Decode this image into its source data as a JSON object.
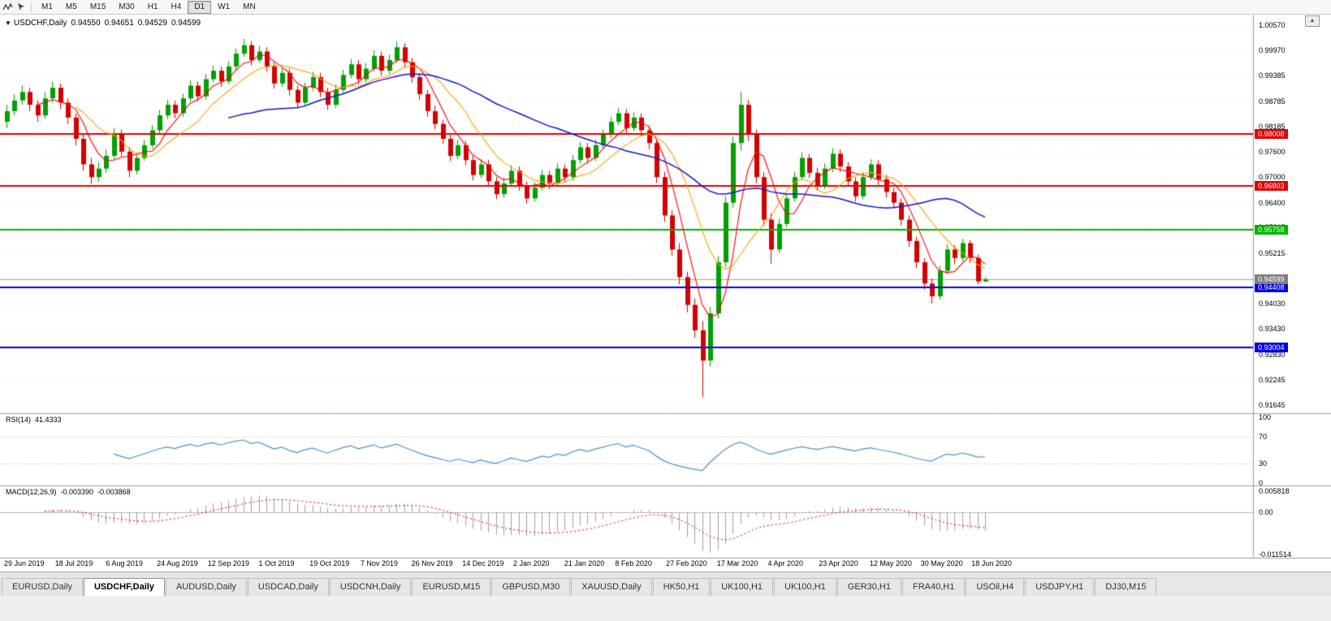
{
  "icons": {
    "chart_dropdown": "▼",
    "scroll_up": "▲"
  },
  "toolbar": {
    "icon_names": [
      "zigzag-indicator-icon",
      "pointer-arrow-icon"
    ],
    "timeframes": [
      "M1",
      "M5",
      "M15",
      "M30",
      "H1",
      "H4",
      "D1",
      "W1",
      "MN"
    ],
    "active_timeframe": "D1"
  },
  "chart": {
    "title": "USDCHF,Daily",
    "ohlc": {
      "open": "0.94550",
      "high": "0.94651",
      "low": "0.94529",
      "close": "0.94599"
    },
    "price_axis_labels": [
      "1.00570",
      "0.99970",
      "0.99385",
      "0.98785",
      "0.98185",
      "0.97600",
      "0.97000",
      "0.96400",
      "0.95815",
      "0.95215",
      "0.94615",
      "0.94030",
      "0.93430",
      "0.92830",
      "0.92245",
      "0.91645"
    ],
    "current_price": {
      "value": 0.94599,
      "label": "0.94599",
      "color": "#808080"
    },
    "hlines": [
      {
        "price": 0.98008,
        "label": "0.98008",
        "color": "#e00000"
      },
      {
        "price": 0.96803,
        "label": "0.96803",
        "color": "#e00000"
      },
      {
        "price": 0.95758,
        "label": "0.95758",
        "color": "#00b400"
      },
      {
        "price": 0.94408,
        "label": "0.94408",
        "color": "#0000e0"
      },
      {
        "price": 0.93004,
        "label": "0.93004",
        "color": "#0000e0"
      }
    ],
    "date_labels": [
      "29 Jun 2019",
      "18 Jul 2019",
      "6 Aug 2019",
      "24 Aug 2019",
      "12 Sep 2019",
      "1 Oct 2019",
      "19 Oct 2019",
      "7 Nov 2019",
      "26 Nov 2019",
      "14 Dec 2019",
      "2 Jan 2020",
      "21 Jan 2020",
      "8 Feb 2020",
      "27 Feb 2020",
      "17 Mar 2020",
      "4 Apr 2020",
      "23 Apr 2020",
      "12 May 2020",
      "30 May 2020",
      "18 Jun 2020"
    ]
  },
  "indicators": {
    "rsi": {
      "name": "RSI(14)",
      "value": "41.4333",
      "period": 14,
      "color": "#4a90d2",
      "scale": [
        "100",
        "70",
        "30",
        "0"
      ],
      "level_lines": [
        70,
        30
      ]
    },
    "macd": {
      "name": "MACD(12,26,9)",
      "value_main": "-0.003390",
      "value_signal": "-0.003868",
      "scale": [
        "0.005818",
        "0.00",
        "-0.011514"
      ],
      "scale_max": 0.005818,
      "scale_min": -0.011514,
      "bar_color": "#a0a0a0",
      "signal_color": "#e00000"
    }
  },
  "chart_data": {
    "type": "candlestick",
    "symbol": "USDCHF",
    "timeframe": "Daily",
    "title": "USDCHF,Daily 0.94550 0.94651 0.94529 0.94599",
    "ylim": [
      0.91645,
      1.0057
    ],
    "x_range": [
      "29 Jun 2019",
      "18 Jun 2020"
    ],
    "bull_color": "#00a000",
    "bear_color": "#d40000",
    "moving_averages": [
      {
        "period": 5,
        "color": "#ff0000"
      },
      {
        "period": 10,
        "color": "#ffa000"
      },
      {
        "period": 30,
        "color": "#1515cc"
      }
    ],
    "candles_ohlc": [
      [
        0.983,
        0.987,
        0.9815,
        0.9855
      ],
      [
        0.9855,
        0.9895,
        0.9845,
        0.988
      ],
      [
        0.988,
        0.9915,
        0.987,
        0.99
      ],
      [
        0.99,
        0.991,
        0.9855,
        0.987
      ],
      [
        0.987,
        0.988,
        0.983,
        0.9845
      ],
      [
        0.9845,
        0.99,
        0.9838,
        0.9885
      ],
      [
        0.9885,
        0.9925,
        0.9875,
        0.991
      ],
      [
        0.991,
        0.992,
        0.986,
        0.9875
      ],
      [
        0.9875,
        0.9885,
        0.9825,
        0.984
      ],
      [
        0.984,
        0.985,
        0.9775,
        0.979
      ],
      [
        0.979,
        0.98,
        0.9715,
        0.973
      ],
      [
        0.973,
        0.9745,
        0.9685,
        0.97
      ],
      [
        0.97,
        0.9735,
        0.969,
        0.972
      ],
      [
        0.972,
        0.9765,
        0.971,
        0.975
      ],
      [
        0.975,
        0.9815,
        0.9742,
        0.98
      ],
      [
        0.98,
        0.9812,
        0.9748,
        0.976
      ],
      [
        0.976,
        0.977,
        0.97,
        0.9715
      ],
      [
        0.9715,
        0.9758,
        0.9706,
        0.9745
      ],
      [
        0.9745,
        0.9788,
        0.9738,
        0.9775
      ],
      [
        0.9775,
        0.9822,
        0.9768,
        0.981
      ],
      [
        0.981,
        0.9858,
        0.9802,
        0.9845
      ],
      [
        0.9845,
        0.9882,
        0.9836,
        0.987
      ],
      [
        0.987,
        0.988,
        0.9838,
        0.985
      ],
      [
        0.985,
        0.9896,
        0.9842,
        0.9885
      ],
      [
        0.9885,
        0.9928,
        0.9878,
        0.9915
      ],
      [
        0.9915,
        0.9925,
        0.9878,
        0.989
      ],
      [
        0.989,
        0.9942,
        0.9882,
        0.993
      ],
      [
        0.993,
        0.9962,
        0.9922,
        0.995
      ],
      [
        0.995,
        0.996,
        0.9912,
        0.9925
      ],
      [
        0.9925,
        0.9972,
        0.9918,
        0.996
      ],
      [
        0.996,
        1.0002,
        0.9952,
        0.999
      ],
      [
        0.999,
        1.0025,
        0.9982,
        1.001
      ],
      [
        1.001,
        1.002,
        0.9962,
        0.9975
      ],
      [
        0.9975,
        1.0008,
        0.9968,
        0.9995
      ],
      [
        0.9995,
        1.0005,
        0.9948,
        0.996
      ],
      [
        0.996,
        0.997,
        0.9908,
        0.992
      ],
      [
        0.992,
        0.9958,
        0.9912,
        0.9945
      ],
      [
        0.9945,
        0.9955,
        0.9892,
        0.9905
      ],
      [
        0.9905,
        0.9915,
        0.9862,
        0.9875
      ],
      [
        0.9875,
        0.9922,
        0.9868,
        0.991
      ],
      [
        0.991,
        0.9948,
        0.9902,
        0.9935
      ],
      [
        0.9935,
        0.9945,
        0.9888,
        0.99
      ],
      [
        0.99,
        0.991,
        0.9858,
        0.987
      ],
      [
        0.987,
        0.9918,
        0.9862,
        0.9905
      ],
      [
        0.9905,
        0.9952,
        0.9898,
        0.994
      ],
      [
        0.994,
        0.9978,
        0.9932,
        0.9965
      ],
      [
        0.9965,
        0.9975,
        0.9918,
        0.993
      ],
      [
        0.993,
        0.9968,
        0.9922,
        0.9955
      ],
      [
        0.9955,
        0.9998,
        0.9948,
        0.9985
      ],
      [
        0.9985,
        0.9995,
        0.9938,
        0.995
      ],
      [
        0.995,
        0.9988,
        0.9942,
        0.9975
      ],
      [
        0.9975,
        1.0018,
        0.9968,
        1.0005
      ],
      [
        1.0005,
        1.0015,
        0.9958,
        0.997
      ],
      [
        0.997,
        0.998,
        0.9922,
        0.9935
      ],
      [
        0.9935,
        0.9945,
        0.9882,
        0.9895
      ],
      [
        0.9895,
        0.9905,
        0.9842,
        0.9855
      ],
      [
        0.9855,
        0.9868,
        0.9812,
        0.9825
      ],
      [
        0.9825,
        0.9835,
        0.9778,
        0.979
      ],
      [
        0.979,
        0.98,
        0.9738,
        0.975
      ],
      [
        0.975,
        0.9788,
        0.9742,
        0.9775
      ],
      [
        0.9775,
        0.9785,
        0.9728,
        0.974
      ],
      [
        0.974,
        0.975,
        0.9692,
        0.9705
      ],
      [
        0.9705,
        0.9742,
        0.9698,
        0.973
      ],
      [
        0.973,
        0.974,
        0.9678,
        0.969
      ],
      [
        0.969,
        0.97,
        0.9648,
        0.966
      ],
      [
        0.966,
        0.9698,
        0.9652,
        0.9685
      ],
      [
        0.9685,
        0.9728,
        0.9678,
        0.9715
      ],
      [
        0.9715,
        0.9725,
        0.9668,
        0.968
      ],
      [
        0.968,
        0.969,
        0.9638,
        0.965
      ],
      [
        0.965,
        0.9688,
        0.9642,
        0.9675
      ],
      [
        0.9675,
        0.9718,
        0.9668,
        0.9705
      ],
      [
        0.9705,
        0.9715,
        0.9672,
        0.9685
      ],
      [
        0.9685,
        0.9732,
        0.9678,
        0.972
      ],
      [
        0.972,
        0.973,
        0.9688,
        0.97
      ],
      [
        0.97,
        0.9752,
        0.9692,
        0.974
      ],
      [
        0.974,
        0.9782,
        0.9732,
        0.977
      ],
      [
        0.977,
        0.978,
        0.9732,
        0.9745
      ],
      [
        0.9745,
        0.9788,
        0.9738,
        0.9775
      ],
      [
        0.9775,
        0.9812,
        0.9768,
        0.98
      ],
      [
        0.98,
        0.9842,
        0.9792,
        0.983
      ],
      [
        0.983,
        0.9862,
        0.9822,
        0.985
      ],
      [
        0.985,
        0.986,
        0.9802,
        0.9815
      ],
      [
        0.9815,
        0.9852,
        0.9808,
        0.984
      ],
      [
        0.984,
        0.985,
        0.9796,
        0.981
      ],
      [
        0.981,
        0.982,
        0.9766,
        0.978
      ],
      [
        0.978,
        0.979,
        0.9686,
        0.97
      ],
      [
        0.97,
        0.9712,
        0.9595,
        0.961
      ],
      [
        0.961,
        0.9622,
        0.9515,
        0.953
      ],
      [
        0.953,
        0.9545,
        0.9448,
        0.9465
      ],
      [
        0.9465,
        0.9478,
        0.9382,
        0.94
      ],
      [
        0.94,
        0.9415,
        0.9322,
        0.934
      ],
      [
        0.934,
        0.9362,
        0.9183,
        0.9269
      ],
      [
        0.9269,
        0.9395,
        0.9255,
        0.938
      ],
      [
        0.938,
        0.9515,
        0.9368,
        0.95
      ],
      [
        0.95,
        0.9655,
        0.9488,
        0.964
      ],
      [
        0.964,
        0.9795,
        0.9628,
        0.978
      ],
      [
        0.978,
        0.9901,
        0.9762,
        0.987
      ],
      [
        0.987,
        0.9882,
        0.9785,
        0.98
      ],
      [
        0.98,
        0.9812,
        0.9685,
        0.97
      ],
      [
        0.97,
        0.9712,
        0.9585,
        0.96
      ],
      [
        0.96,
        0.9615,
        0.9496,
        0.953
      ],
      [
        0.953,
        0.9602,
        0.9522,
        0.959
      ],
      [
        0.959,
        0.9662,
        0.9582,
        0.965
      ],
      [
        0.965,
        0.9712,
        0.9642,
        0.97
      ],
      [
        0.97,
        0.9758,
        0.9692,
        0.9745
      ],
      [
        0.9745,
        0.9755,
        0.9698,
        0.971
      ],
      [
        0.971,
        0.9722,
        0.9668,
        0.968
      ],
      [
        0.968,
        0.9732,
        0.9672,
        0.972
      ],
      [
        0.972,
        0.9768,
        0.9712,
        0.9755
      ],
      [
        0.9755,
        0.9765,
        0.9712,
        0.9725
      ],
      [
        0.9725,
        0.9735,
        0.9678,
        0.969
      ],
      [
        0.969,
        0.97,
        0.9642,
        0.9655
      ],
      [
        0.9655,
        0.9712,
        0.9648,
        0.97
      ],
      [
        0.97,
        0.9742,
        0.9692,
        0.973
      ],
      [
        0.973,
        0.974,
        0.9682,
        0.9695
      ],
      [
        0.9695,
        0.9705,
        0.9652,
        0.9665
      ],
      [
        0.9665,
        0.9675,
        0.9626,
        0.964
      ],
      [
        0.964,
        0.965,
        0.9586,
        0.96
      ],
      [
        0.96,
        0.961,
        0.9536,
        0.955
      ],
      [
        0.955,
        0.956,
        0.9486,
        0.95
      ],
      [
        0.95,
        0.951,
        0.9436,
        0.945
      ],
      [
        0.945,
        0.9462,
        0.9403,
        0.942
      ],
      [
        0.942,
        0.9492,
        0.9412,
        0.948
      ],
      [
        0.948,
        0.9542,
        0.9472,
        0.953
      ],
      [
        0.953,
        0.954,
        0.9496,
        0.951
      ],
      [
        0.951,
        0.9555,
        0.9502,
        0.9545
      ],
      [
        0.9545,
        0.9552,
        0.9498,
        0.951
      ],
      [
        0.951,
        0.9518,
        0.9448,
        0.9455
      ],
      [
        0.9455,
        0.94651,
        0.94529,
        0.94599
      ]
    ]
  },
  "tabbar": {
    "active_index": 1,
    "tabs": [
      {
        "label": "EURUSD,Daily"
      },
      {
        "label": "USDCHF,Daily"
      },
      {
        "label": "AUDUSD,Daily"
      },
      {
        "label": "USDCAD,Daily"
      },
      {
        "label": "USDCNH,Daily"
      },
      {
        "label": "EURUSD,M15"
      },
      {
        "label": "GBPUSD,M30"
      },
      {
        "label": "XAUUSD,Daily"
      },
      {
        "label": "HK50,H1"
      },
      {
        "label": "UK100,H1"
      },
      {
        "label": "UK100,H1"
      },
      {
        "label": "GER30,H1"
      },
      {
        "label": "FRA40,H1"
      },
      {
        "label": "USOil,H4"
      },
      {
        "label": "USDJPY,H1"
      },
      {
        "label": "DJ30,M15"
      }
    ]
  }
}
